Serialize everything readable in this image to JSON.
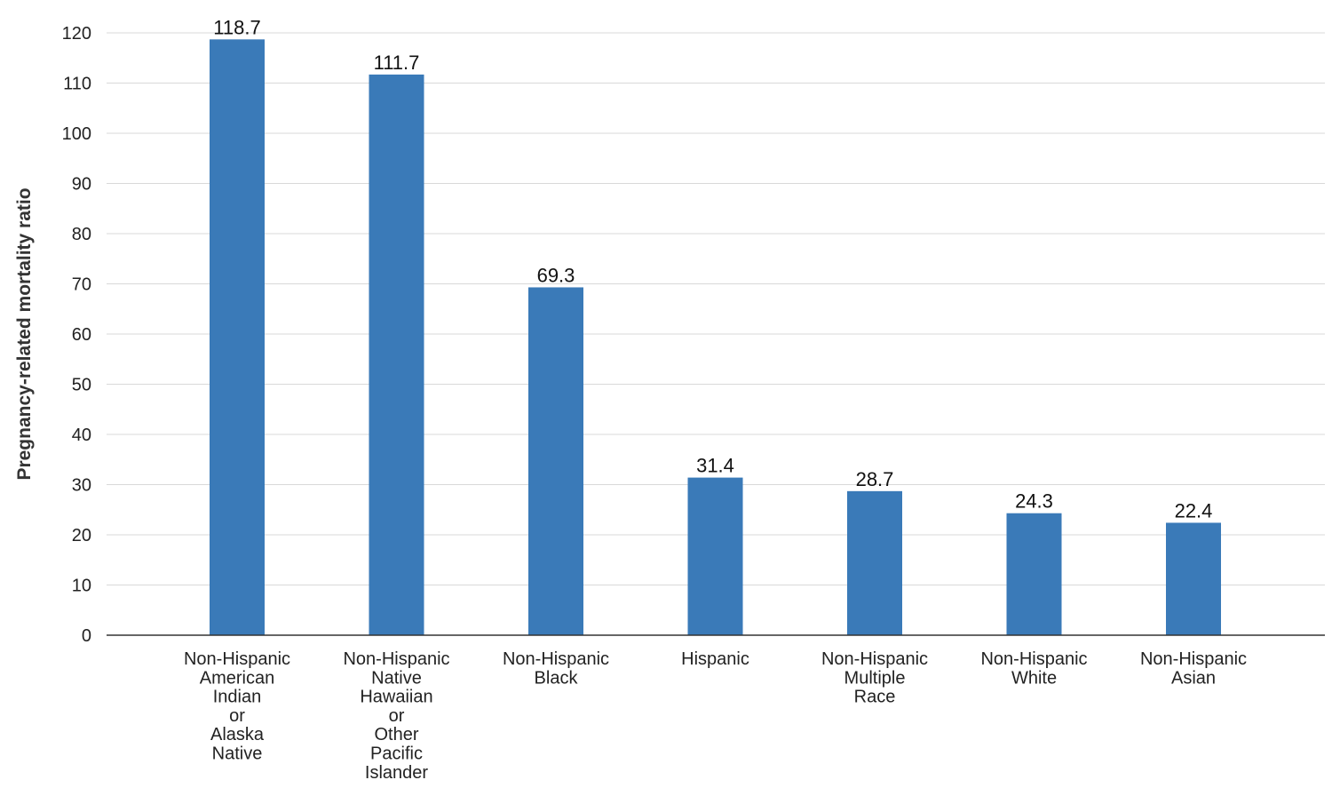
{
  "chart_data": {
    "type": "bar",
    "ylabel": "Pregnancy-related mortality ratio",
    "xlabel": "",
    "ylim": [
      0,
      120
    ],
    "yticks": [
      0,
      10,
      20,
      30,
      40,
      50,
      60,
      70,
      80,
      90,
      100,
      110,
      120
    ],
    "grid": true,
    "bar_color": "#3a7ab8",
    "categories": [
      "Non-Hispanic American Indian or Alaska Native",
      "Non-Hispanic Native Hawaiian or Other Pacific Islander",
      "Non-Hispanic Black",
      "Hispanic",
      "Non-Hispanic Multiple Race",
      "Non-Hispanic White",
      "Non-Hispanic Asian"
    ],
    "category_lines": [
      [
        "Non-Hispanic",
        "American",
        "Indian",
        "or",
        "Alaska",
        "Native"
      ],
      [
        "Non-Hispanic",
        "Native",
        "Hawaiian",
        "or",
        "Other",
        "Pacific",
        "Islander"
      ],
      [
        "Non-Hispanic",
        "Black"
      ],
      [
        "Hispanic"
      ],
      [
        "Non-Hispanic",
        "Multiple",
        "Race"
      ],
      [
        "Non-Hispanic",
        "White"
      ],
      [
        "Non-Hispanic",
        "Asian"
      ]
    ],
    "values": [
      118.7,
      111.7,
      69.3,
      31.4,
      28.7,
      24.3,
      22.4
    ],
    "value_labels": [
      "118.7",
      "111.7",
      "69.3",
      "31.4",
      "28.7",
      "24.3",
      "22.4"
    ]
  }
}
